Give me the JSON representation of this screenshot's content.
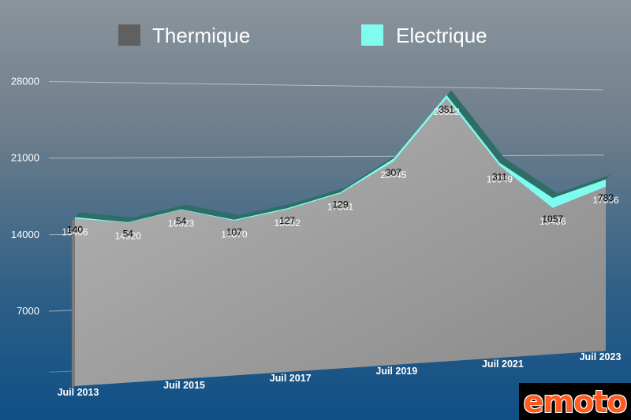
{
  "chart_data": {
    "type": "area",
    "stacked": true,
    "categories": [
      "Juil 2013",
      "",
      "Juil 2015",
      "",
      "Juil 2017",
      "",
      "Juil 2019",
      "",
      "Juil 2021",
      "",
      "Juil 2023"
    ],
    "series": [
      {
        "name": "Thermique",
        "values": [
          15406,
          14920,
          16023,
          14870,
          15852,
          17331,
          20445,
          26882,
          19949,
          15436,
          17596
        ],
        "value_labels": [
          "15406",
          "14920",
          "16023",
          "14870",
          "15852",
          "17331",
          "20445",
          "26882",
          "19949",
          "15436",
          "17596"
        ]
      },
      {
        "name": "Electrique",
        "values": [
          140,
          54,
          54,
          107,
          127,
          129,
          307,
          351,
          311,
          1057,
          783
        ],
        "value_labels": [
          "140",
          "54",
          "54",
          "107",
          "127",
          "129",
          "307",
          "351",
          "311",
          "1057",
          "783"
        ]
      }
    ],
    "yticks": [
      "7000",
      "14000",
      "21000",
      "28000"
    ],
    "ylim": [
      0,
      28000
    ],
    "grid": true,
    "legend_position": "top",
    "colors": {
      "Thermique": "#606060",
      "Electrique": "#7ffcee",
      "area_fill": "#a4a4a4"
    }
  },
  "logo": {
    "text": "emoto"
  }
}
